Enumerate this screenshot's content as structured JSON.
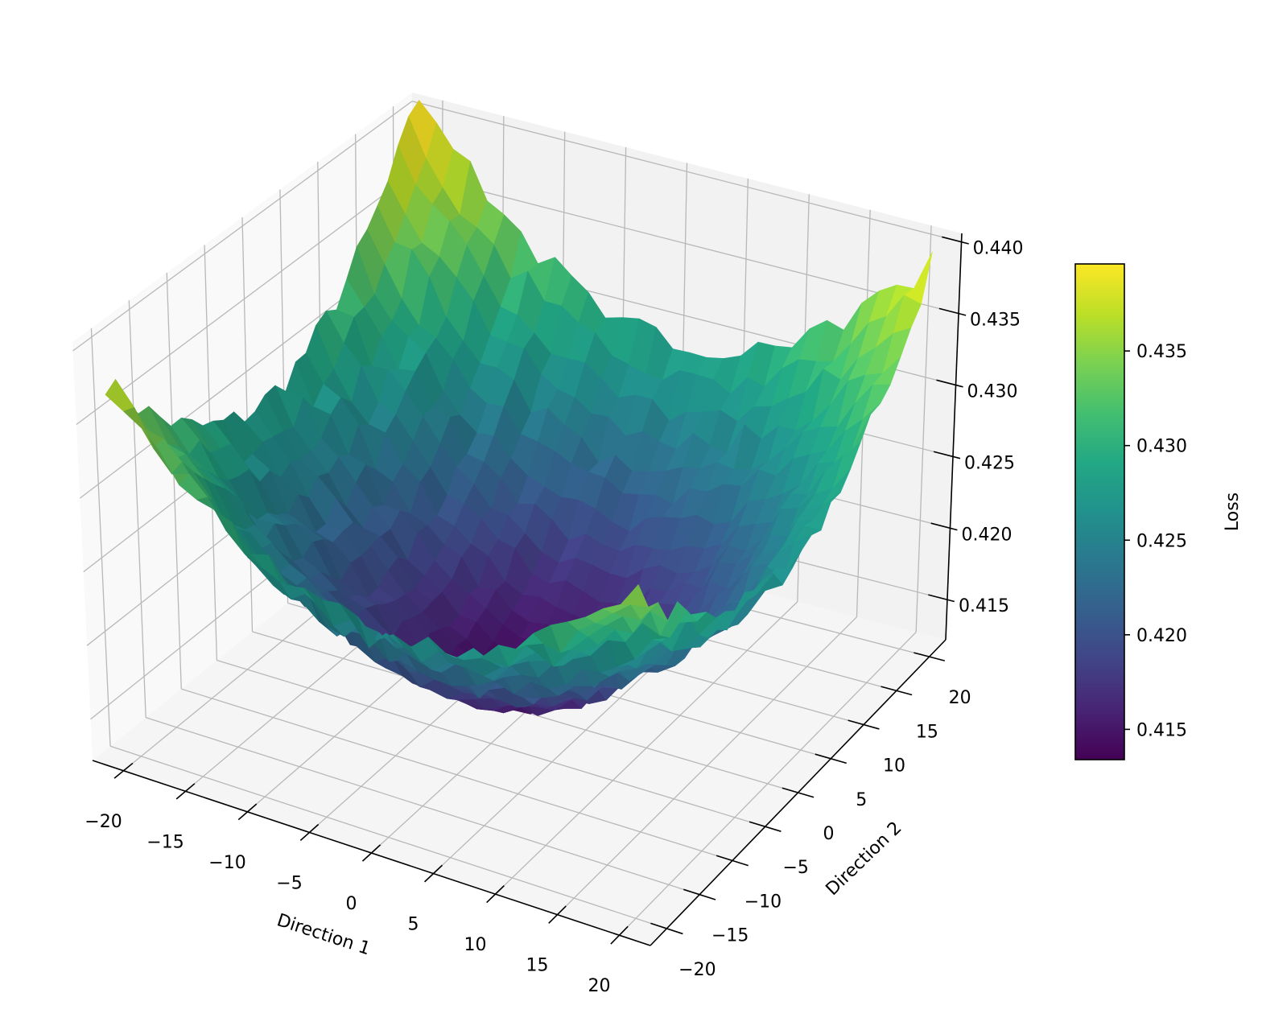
{
  "chart_data": {
    "type": "surface",
    "title": "",
    "xlabel": "Direction 1",
    "ylabel": "Direction 2",
    "zlabel": "",
    "colorbar_label": "Loss",
    "colormap": "viridis",
    "xlim": [
      -22.5,
      22.5
    ],
    "ylim": [
      -22.5,
      22.5
    ],
    "zlim": [
      0.4122,
      0.4406
    ],
    "x_ticks": [
      "−20",
      "−15",
      "−10",
      "−5",
      "0",
      "5",
      "10",
      "15",
      "20"
    ],
    "x_tick_values": [
      -20,
      -15,
      -10,
      -5,
      0,
      5,
      10,
      15,
      20
    ],
    "y_ticks": [
      "−20",
      "−15",
      "−10",
      "−5",
      "0",
      "5",
      "10",
      "15",
      "20"
    ],
    "y_tick_values": [
      -20,
      -15,
      -10,
      -5,
      0,
      5,
      10,
      15,
      20
    ],
    "z_ticks": [
      "0.415",
      "0.420",
      "0.425",
      "0.430",
      "0.435",
      "0.440"
    ],
    "z_tick_values": [
      0.415,
      0.42,
      0.425,
      0.43,
      0.435,
      0.44
    ],
    "colorbar": {
      "vmin": 0.4134,
      "vmax": 0.4396,
      "ticks": [
        "0.415",
        "0.420",
        "0.425",
        "0.430",
        "0.435"
      ],
      "tick_values": [
        0.415,
        0.42,
        0.425,
        0.43,
        0.435
      ]
    },
    "surface": {
      "x_range": [
        -21,
        21
      ],
      "y_range": [
        -21,
        21
      ],
      "grid_points": 31,
      "minimum_loss": 0.4135,
      "minimum_at": [
        0,
        0
      ],
      "corner_losses": {
        "x-20_y-20": 0.436,
        "x20_y-20": 0.434,
        "x20_y20": 0.437,
        "x-20_y20": 0.439
      },
      "radial_exponent": 0.8,
      "noise_amplitude": 0.0009,
      "noise_seed": 7
    },
    "grid": true
  }
}
